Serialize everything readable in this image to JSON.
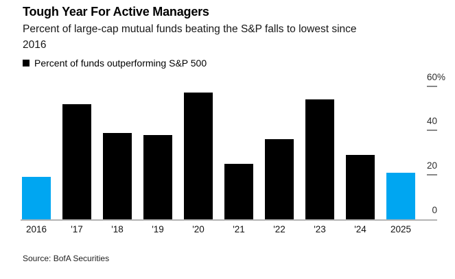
{
  "header": {
    "title": "Tough Year For Active Managers",
    "subtitle_line1": "Percent of large-cap mutual funds beating the S&P falls to lowest since",
    "subtitle_line2": "2016"
  },
  "legend": {
    "label": "Percent of funds outperforming S&P 500",
    "swatch_color": "#000000"
  },
  "source": "Source: BofA Securities",
  "colors": {
    "bar_default": "#000000",
    "bar_highlight": "#00a6f1",
    "axis_line": "#b3b3b3",
    "tick_dash": "#878787"
  },
  "chart_data": {
    "type": "bar",
    "title": "Tough Year For Active Managers",
    "subtitle": "Percent of large-cap mutual funds beating the S&P falls to lowest since 2016",
    "categories": [
      "2016",
      "'17",
      "'18",
      "'19",
      "'20",
      "'21",
      "'22",
      "'23",
      "'24",
      "2025"
    ],
    "values": [
      19,
      52,
      39,
      38,
      57,
      25,
      36,
      54,
      29,
      21
    ],
    "highlighted_categories": [
      "2016",
      "2025"
    ],
    "highlight_color": "#00a6f1",
    "default_color": "#000000",
    "xlabel": "",
    "ylabel": "",
    "ylim": [
      0,
      60
    ],
    "yticks": [
      {
        "value": 60,
        "label": "60",
        "suffix": "%"
      },
      {
        "value": 40,
        "label": "40"
      },
      {
        "value": 20,
        "label": "20"
      },
      {
        "value": 0,
        "label": "0"
      }
    ],
    "axis_side": "right",
    "grid": false,
    "legend": [
      "Percent of funds outperforming S&P 500"
    ],
    "legend_position": "top-left",
    "source": "Source: BofA Securities"
  }
}
